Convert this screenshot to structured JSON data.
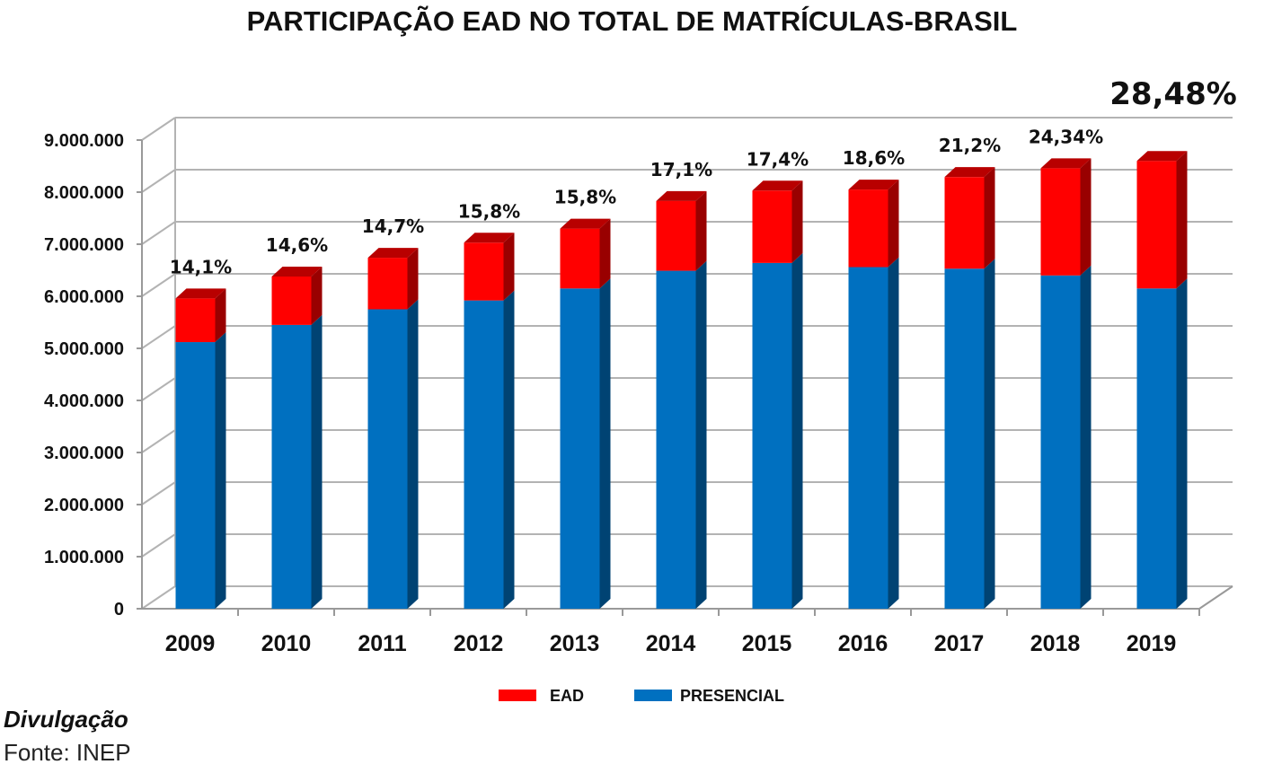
{
  "chart_data": {
    "type": "bar",
    "stacked": true,
    "three_d": true,
    "title": "PARTICIPAÇÃO EAD NO TOTAL DE MATRÍCULAS-BRASIL",
    "categories": [
      "2009",
      "2010",
      "2011",
      "2012",
      "2013",
      "2014",
      "2015",
      "2016",
      "2017",
      "2018",
      "2019"
    ],
    "series": [
      {
        "name": "PRESENCIAL",
        "color": "#0070C0",
        "values": [
          5120000,
          5450000,
          5750000,
          5920000,
          6150000,
          6490000,
          6640000,
          6560000,
          6530000,
          6400000,
          6150000
        ]
      },
      {
        "name": "EAD",
        "color": "#FF0000",
        "values": [
          840000,
          930000,
          990000,
          1110000,
          1150000,
          1340000,
          1390000,
          1490000,
          1760000,
          2060000,
          2450000
        ]
      }
    ],
    "data_labels": [
      "14,1%",
      "14,6%",
      "14,7%",
      "15,8%",
      "15,8%",
      "17,1%",
      "17,4%",
      "18,6%",
      "21,2%",
      "24,34%",
      "28,48%"
    ],
    "ylim": [
      0,
      9000000
    ],
    "yticks": [
      {
        "value": 0,
        "label": "0"
      },
      {
        "value": 1000000,
        "label": "1.000.000"
      },
      {
        "value": 2000000,
        "label": "2.000.000"
      },
      {
        "value": 3000000,
        "label": "3.000.000"
      },
      {
        "value": 4000000,
        "label": "4.000.000"
      },
      {
        "value": 5000000,
        "label": "5.000.000"
      },
      {
        "value": 6000000,
        "label": "6.000.000"
      },
      {
        "value": 7000000,
        "label": "7.000.000"
      },
      {
        "value": 8000000,
        "label": "8.000.000"
      },
      {
        "value": 9000000,
        "label": "9.000.000"
      }
    ],
    "grid": true,
    "legend": {
      "placement": "bottom",
      "entries": [
        "EAD",
        "PRESENCIAL"
      ]
    }
  },
  "footer": {
    "credit": "Divulgação",
    "source": "Fonte: INEP"
  }
}
